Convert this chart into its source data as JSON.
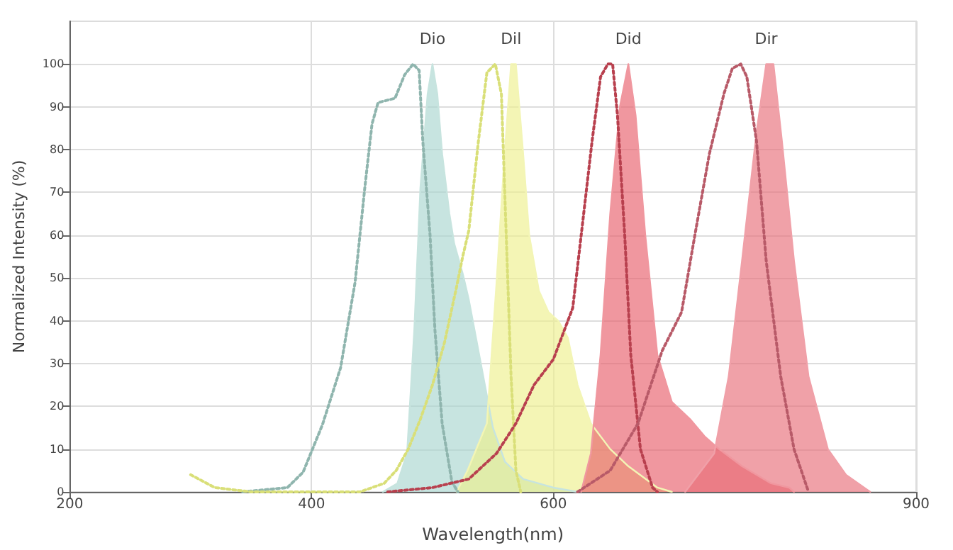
{
  "chart_data": {
    "type": "line",
    "xlabel": "Wavelength(nm)",
    "ylabel": "Normalized Intensity (%)",
    "xlim": [
      200,
      900
    ],
    "xticks": [
      200,
      400,
      600,
      900
    ],
    "ylim": [
      0,
      110
    ],
    "yticks": [
      0,
      10,
      20,
      30,
      40,
      50,
      60,
      70,
      80,
      90,
      100
    ],
    "grid": true,
    "marker": "none",
    "series": [
      {
        "line_style": "dotted",
        "color": "#8fb5ae",
        "x": [
          343,
          380,
          393,
          409,
          424,
          436,
          444,
          450,
          455,
          469,
          477,
          484,
          489,
          492,
          498,
          502,
          508,
          516,
          521
        ],
        "values": [
          0,
          1,
          4.6,
          15.7,
          29,
          49,
          71,
          86,
          91,
          92,
          97.5,
          100,
          98.5,
          82,
          60,
          38,
          16,
          2.4,
          0
        ]
      },
      {
        "type": "area",
        "name": "Dio",
        "color": "#a9d6cf",
        "x": [
          459,
          471,
          479,
          485,
          490,
          496,
          500,
          504,
          508,
          514,
          518,
          525,
          530,
          540,
          550,
          560,
          575,
          600,
          620
        ],
        "values": [
          0,
          2,
          9,
          38,
          71,
          93,
          100,
          93,
          79,
          65,
          58,
          51,
          45,
          30,
          15,
          7,
          3,
          1,
          0
        ]
      },
      {
        "line_style": "dotted",
        "color": "#d9df78",
        "x": [
          300,
          320,
          350,
          440,
          460,
          470,
          480,
          490,
          500,
          510,
          520,
          525,
          530,
          538,
          545,
          552,
          557,
          561,
          565,
          569,
          573
        ],
        "values": [
          4,
          1,
          0,
          0,
          2,
          5,
          10,
          17,
          25,
          35,
          48,
          55,
          61,
          82,
          98,
          100,
          93,
          60,
          27,
          5,
          0
        ]
      },
      {
        "type": "area",
        "name": "Dil",
        "color": "#eef08e",
        "x": [
          520,
          529,
          545,
          553,
          559,
          565,
          569,
          575,
          580,
          588,
          596,
          604,
          612,
          620,
          631,
          647,
          662,
          686,
          698
        ],
        "values": [
          0,
          5,
          16,
          49,
          76,
          100,
          100,
          79,
          60,
          47,
          42,
          40,
          36,
          25,
          16,
          10,
          6,
          1,
          0
        ]
      },
      {
        "line_style": "dotted",
        "color": "#b8404e",
        "x": [
          463,
          500,
          530,
          553,
          569,
          584,
          600,
          616,
          623,
          632,
          639,
          645,
          649,
          653,
          659,
          664,
          672,
          682,
          686
        ],
        "values": [
          0,
          1,
          3,
          9,
          16,
          25,
          31,
          43,
          60,
          82,
          97,
          100,
          100,
          88,
          60,
          32,
          10,
          1,
          0
        ]
      },
      {
        "type": "area",
        "name": "Did",
        "color": "#e8606c",
        "x": [
          623,
          631,
          639,
          647,
          655,
          662,
          668,
          676,
          686,
          698,
          713,
          725,
          737,
          756,
          780,
          795,
          799
        ],
        "values": [
          0,
          9,
          32,
          65,
          90,
          100,
          88,
          60,
          32,
          21,
          17,
          13,
          10,
          6,
          2,
          1,
          0
        ]
      },
      {
        "line_style": "dotted",
        "color": "#b85a68",
        "x": [
          620,
          647,
          670,
          690,
          706,
          717,
          729,
          741,
          748,
          755,
          760,
          768,
          776,
          788,
          799,
          811
        ],
        "values": [
          0,
          5,
          16,
          33,
          42,
          60,
          79,
          93,
          99,
          100,
          97,
          82,
          54,
          27,
          10,
          0
        ]
      },
      {
        "type": "area",
        "name": "Dir",
        "color": "#e86e7a",
        "x": [
          709,
          733,
          745,
          756,
          768,
          776,
          782,
          789,
          799,
          811,
          827,
          842,
          862
        ],
        "values": [
          0,
          9,
          27,
          54,
          84,
          100,
          100,
          82,
          54,
          27,
          10,
          4,
          0
        ]
      }
    ]
  }
}
